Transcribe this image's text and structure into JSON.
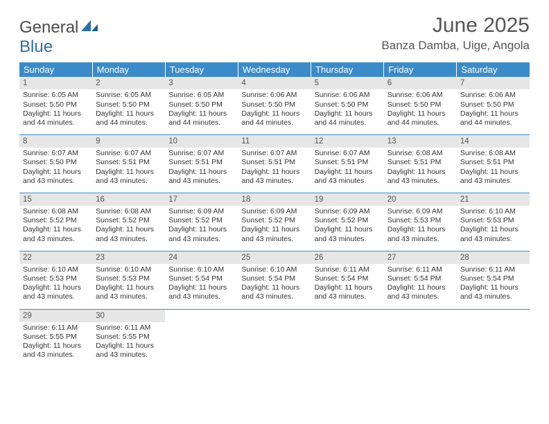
{
  "logo": {
    "part1": "General",
    "part2": "Blue"
  },
  "title": "June 2025",
  "location": "Banza Damba, Uige, Angola",
  "header_bg": "#3b8bc8",
  "header_text": "#ffffff",
  "border_color": "#3b8bc8",
  "daynum_bg": "#e6e6e6",
  "body_bg": "#ffffff",
  "text_color": "#333333",
  "columns": [
    "Sunday",
    "Monday",
    "Tuesday",
    "Wednesday",
    "Thursday",
    "Friday",
    "Saturday"
  ],
  "days": [
    {
      "n": 1,
      "sr": "6:05 AM",
      "ss": "5:50 PM",
      "dl": "11 hours and 44 minutes."
    },
    {
      "n": 2,
      "sr": "6:05 AM",
      "ss": "5:50 PM",
      "dl": "11 hours and 44 minutes."
    },
    {
      "n": 3,
      "sr": "6:05 AM",
      "ss": "5:50 PM",
      "dl": "11 hours and 44 minutes."
    },
    {
      "n": 4,
      "sr": "6:06 AM",
      "ss": "5:50 PM",
      "dl": "11 hours and 44 minutes."
    },
    {
      "n": 5,
      "sr": "6:06 AM",
      "ss": "5:50 PM",
      "dl": "11 hours and 44 minutes."
    },
    {
      "n": 6,
      "sr": "6:06 AM",
      "ss": "5:50 PM",
      "dl": "11 hours and 44 minutes."
    },
    {
      "n": 7,
      "sr": "6:06 AM",
      "ss": "5:50 PM",
      "dl": "11 hours and 44 minutes."
    },
    {
      "n": 8,
      "sr": "6:07 AM",
      "ss": "5:50 PM",
      "dl": "11 hours and 43 minutes."
    },
    {
      "n": 9,
      "sr": "6:07 AM",
      "ss": "5:51 PM",
      "dl": "11 hours and 43 minutes."
    },
    {
      "n": 10,
      "sr": "6:07 AM",
      "ss": "5:51 PM",
      "dl": "11 hours and 43 minutes."
    },
    {
      "n": 11,
      "sr": "6:07 AM",
      "ss": "5:51 PM",
      "dl": "11 hours and 43 minutes."
    },
    {
      "n": 12,
      "sr": "6:07 AM",
      "ss": "5:51 PM",
      "dl": "11 hours and 43 minutes."
    },
    {
      "n": 13,
      "sr": "6:08 AM",
      "ss": "5:51 PM",
      "dl": "11 hours and 43 minutes."
    },
    {
      "n": 14,
      "sr": "6:08 AM",
      "ss": "5:51 PM",
      "dl": "11 hours and 43 minutes."
    },
    {
      "n": 15,
      "sr": "6:08 AM",
      "ss": "5:52 PM",
      "dl": "11 hours and 43 minutes."
    },
    {
      "n": 16,
      "sr": "6:08 AM",
      "ss": "5:52 PM",
      "dl": "11 hours and 43 minutes."
    },
    {
      "n": 17,
      "sr": "6:09 AM",
      "ss": "5:52 PM",
      "dl": "11 hours and 43 minutes."
    },
    {
      "n": 18,
      "sr": "6:09 AM",
      "ss": "5:52 PM",
      "dl": "11 hours and 43 minutes."
    },
    {
      "n": 19,
      "sr": "6:09 AM",
      "ss": "5:52 PM",
      "dl": "11 hours and 43 minutes."
    },
    {
      "n": 20,
      "sr": "6:09 AM",
      "ss": "5:53 PM",
      "dl": "11 hours and 43 minutes."
    },
    {
      "n": 21,
      "sr": "6:10 AM",
      "ss": "5:53 PM",
      "dl": "11 hours and 43 minutes."
    },
    {
      "n": 22,
      "sr": "6:10 AM",
      "ss": "5:53 PM",
      "dl": "11 hours and 43 minutes."
    },
    {
      "n": 23,
      "sr": "6:10 AM",
      "ss": "5:53 PM",
      "dl": "11 hours and 43 minutes."
    },
    {
      "n": 24,
      "sr": "6:10 AM",
      "ss": "5:54 PM",
      "dl": "11 hours and 43 minutes."
    },
    {
      "n": 25,
      "sr": "6:10 AM",
      "ss": "5:54 PM",
      "dl": "11 hours and 43 minutes."
    },
    {
      "n": 26,
      "sr": "6:11 AM",
      "ss": "5:54 PM",
      "dl": "11 hours and 43 minutes."
    },
    {
      "n": 27,
      "sr": "6:11 AM",
      "ss": "5:54 PM",
      "dl": "11 hours and 43 minutes."
    },
    {
      "n": 28,
      "sr": "6:11 AM",
      "ss": "5:54 PM",
      "dl": "11 hours and 43 minutes."
    },
    {
      "n": 29,
      "sr": "6:11 AM",
      "ss": "5:55 PM",
      "dl": "11 hours and 43 minutes."
    },
    {
      "n": 30,
      "sr": "6:11 AM",
      "ss": "5:55 PM",
      "dl": "11 hours and 43 minutes."
    }
  ],
  "labels": {
    "sunrise": "Sunrise:",
    "sunset": "Sunset:",
    "daylight": "Daylight:"
  },
  "first_day_col": 0,
  "cols": 7
}
